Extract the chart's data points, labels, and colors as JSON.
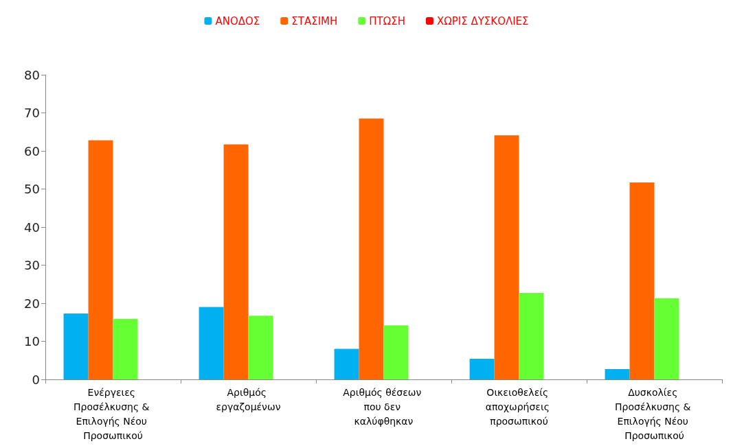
{
  "chart_data": {
    "type": "bar",
    "categories": [
      "Ενέργειες Προσέλκυσης & Επιλογής Νέου Προσωπικού",
      "Αριθμός εργαζομένων",
      "Αριθμός θέσεων που δεν καλύφθηκαν",
      "Οικειοθελείς αποχωρήσεις προσωπικού",
      "Δυσκολίες Προσέλκυσης & Επιλογής Νέου Προσωπικού"
    ],
    "series": [
      {
        "name": "ΑΝΟΔΟΣ",
        "color": "#00b0f0",
        "values": [
          17.3,
          19.0,
          8.0,
          5.4,
          2.7
        ]
      },
      {
        "name": "ΣΤΑΣΙΜΗ",
        "color": "#ff6600",
        "values": [
          62.8,
          61.7,
          68.5,
          64.1,
          51.7
        ]
      },
      {
        "name": "ΠΤΩΣΗ",
        "color": "#66ff33",
        "values": [
          15.9,
          16.7,
          14.2,
          22.7,
          21.3
        ]
      },
      {
        "name": "ΧΩΡΙΣ ΔΥΣΚΟΛΙΕΣ",
        "color": "#ff0000",
        "values": [
          null,
          null,
          null,
          null,
          null
        ]
      }
    ],
    "ylim": [
      0,
      80
    ],
    "yticks": [
      0,
      10,
      20,
      30,
      40,
      50,
      60,
      70,
      80
    ],
    "grid": false,
    "legend": "top"
  }
}
